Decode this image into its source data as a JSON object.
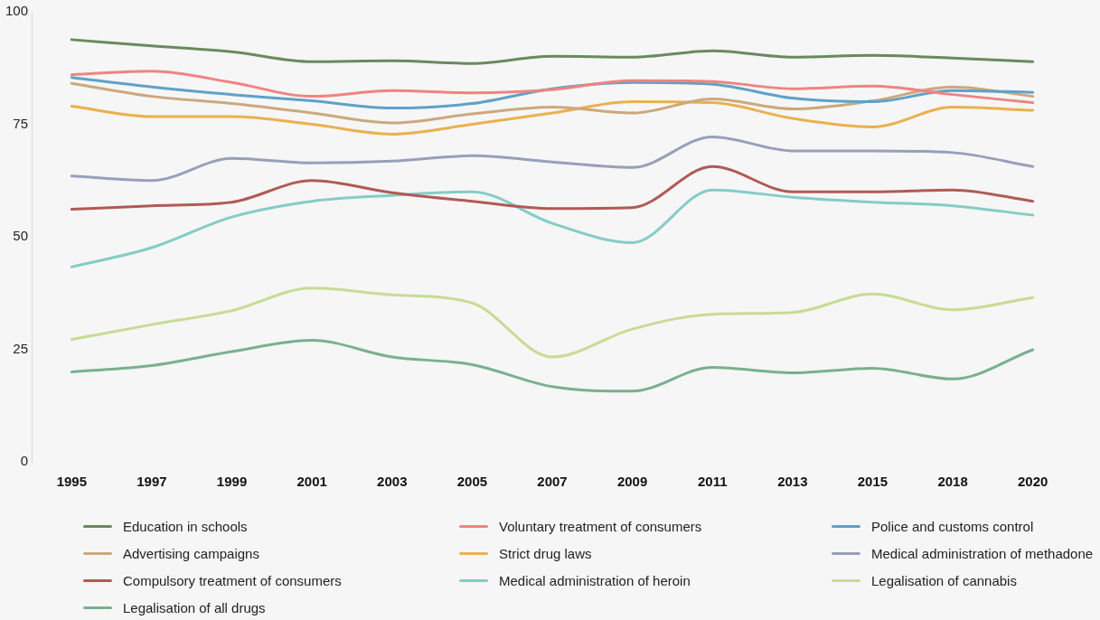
{
  "chart_data": {
    "type": "line",
    "categories": [
      "1995",
      "1997",
      "1999",
      "2001",
      "2003",
      "2005",
      "2007",
      "2009",
      "2011",
      "2013",
      "2015",
      "2018",
      "2020"
    ],
    "ylim": [
      0,
      100
    ],
    "yticks": [
      0,
      25,
      50,
      75,
      100
    ],
    "grid": false,
    "legend": "bottom",
    "marker": "none",
    "line_style": "solid",
    "series": [
      {
        "name": "Education in schools",
        "color": "#6a8a5e",
        "values": [
          93.8,
          92.4,
          91.1,
          88.9,
          89.1,
          88.5,
          90.1,
          89.9,
          91.3,
          89.9,
          90.3,
          89.7,
          88.9
        ]
      },
      {
        "name": "Voluntary treatment of consumers",
        "color": "#ef8480",
        "values": [
          86,
          86.8,
          84.3,
          81.2,
          82.5,
          82,
          82.7,
          84.7,
          84.5,
          82.9,
          83.5,
          81.6,
          79.8
        ]
      },
      {
        "name": "Police and customs control",
        "color": "#5fa1c8",
        "values": [
          85.4,
          83.3,
          81.6,
          80.2,
          78.6,
          79.6,
          82.9,
          84.3,
          83.9,
          80.8,
          80,
          82.5,
          82.1
        ]
      },
      {
        "name": "Advertising campaigns",
        "color": "#cca87c",
        "values": [
          84.1,
          81.2,
          79.6,
          77.5,
          75.3,
          77.3,
          78.8,
          77.5,
          80.6,
          78.4,
          80.2,
          83.3,
          81.2
        ]
      },
      {
        "name": "Strict drug laws",
        "color": "#ebb04f",
        "values": [
          79,
          76.7,
          76.7,
          75,
          72.8,
          75,
          77.5,
          80,
          79.8,
          76.3,
          74.4,
          78.8,
          78.1
        ]
      },
      {
        "name": "Medical administration of methadone",
        "color": "#999fba",
        "values": [
          63.5,
          62.5,
          67.4,
          66.4,
          66.8,
          68,
          66.6,
          65.4,
          72.2,
          69.1,
          69.1,
          68.7,
          65.6
        ]
      },
      {
        "name": "Compulsory treatment of consumers",
        "color": "#b15a55",
        "values": [
          56.1,
          56.9,
          57.7,
          62.5,
          59.8,
          57.9,
          56.3,
          56.5,
          65.6,
          60,
          60,
          60.4,
          57.9
        ]
      },
      {
        "name": "Medical administration of heroin",
        "color": "#85ccc6",
        "values": [
          43.3,
          47.6,
          54.4,
          57.9,
          59.2,
          60,
          53,
          48.7,
          60.4,
          58.8,
          57.7,
          56.9,
          54.8
        ]
      },
      {
        "name": "Legalisation of cannabis",
        "color": "#c8db94",
        "values": [
          27.2,
          30.5,
          33.6,
          38.6,
          37.1,
          35.3,
          23.3,
          29.5,
          32.8,
          33.2,
          37.3,
          33.8,
          36.5
        ]
      },
      {
        "name": "Legalisation of all drugs",
        "color": "#79b08e",
        "values": [
          20,
          21.4,
          24.5,
          27,
          23.3,
          21.6,
          16.7,
          15.7,
          21,
          19.8,
          20.8,
          18.4,
          24.9
        ]
      }
    ]
  }
}
